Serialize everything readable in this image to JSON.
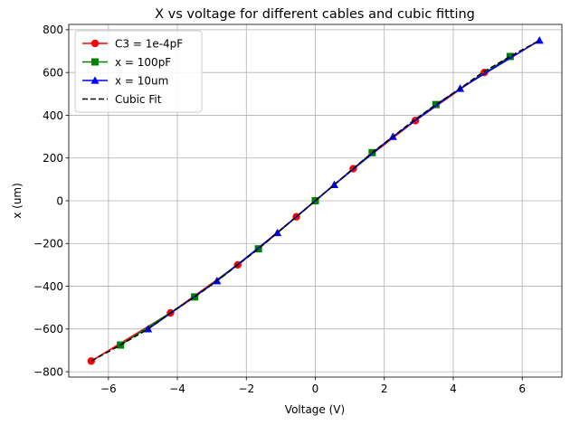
{
  "chart_data": {
    "type": "line",
    "title": "X vs voltage for different cables and cubic fitting",
    "xlabel": "Voltage (V)",
    "ylabel": "x (um)",
    "xlim": [
      -7.15,
      7.15
    ],
    "ylim": [
      -825,
      825
    ],
    "xticks": [
      -6,
      -4,
      -2,
      0,
      2,
      4,
      6
    ],
    "yticks": [
      -800,
      -600,
      -400,
      -200,
      0,
      200,
      400,
      600,
      800
    ],
    "xtick_labels": [
      "−6",
      "−4",
      "−2",
      "0",
      "2",
      "4",
      "6"
    ],
    "ytick_labels": [
      "−800",
      "−600",
      "−400",
      "−200",
      "0",
      "200",
      "400",
      "600",
      "800"
    ],
    "grid": true,
    "legend_position": "top-left",
    "series": [
      {
        "name": "C3 = 1e-4pF",
        "color": "#ff0000",
        "marker": "circle",
        "line_style": "solid",
        "x": [
          -6.5,
          -4.2,
          -2.25,
          -0.55,
          1.1,
          2.9,
          4.9
        ],
        "y": [
          -750,
          -525,
          -300,
          -75,
          150,
          375,
          600
        ]
      },
      {
        "name": "x = 100pF",
        "color": "#008000",
        "marker": "square",
        "line_style": "solid",
        "x": [
          -5.65,
          -3.5,
          -1.65,
          0.0,
          1.65,
          3.5,
          5.65
        ],
        "y": [
          -675,
          -450,
          -225,
          0,
          225,
          450,
          675
        ]
      },
      {
        "name": "x = 10um",
        "color": "#0000ff",
        "marker": "triangle",
        "line_style": "solid",
        "x": [
          -4.85,
          -2.85,
          -1.1,
          0.55,
          2.25,
          4.2,
          6.5
        ],
        "y": [
          -600,
          -375,
          -150,
          75,
          300,
          525,
          750
        ]
      },
      {
        "name": "Cubic Fit",
        "color": "#000000",
        "marker": "none",
        "line_style": "dashed",
        "x": [
          -6.5,
          -5.65,
          -4.85,
          -4.2,
          -3.5,
          -2.85,
          -2.25,
          -1.65,
          -1.1,
          -0.55,
          0.0,
          0.55,
          1.1,
          1.65,
          2.25,
          2.85,
          3.5,
          4.2,
          4.85,
          5.65,
          6.5
        ],
        "y": [
          -750,
          -675,
          -600,
          -525,
          -450,
          -375,
          -300,
          -225,
          -150,
          -75,
          0,
          75,
          150,
          225,
          300,
          375,
          450,
          525,
          600,
          675,
          750
        ]
      }
    ]
  }
}
